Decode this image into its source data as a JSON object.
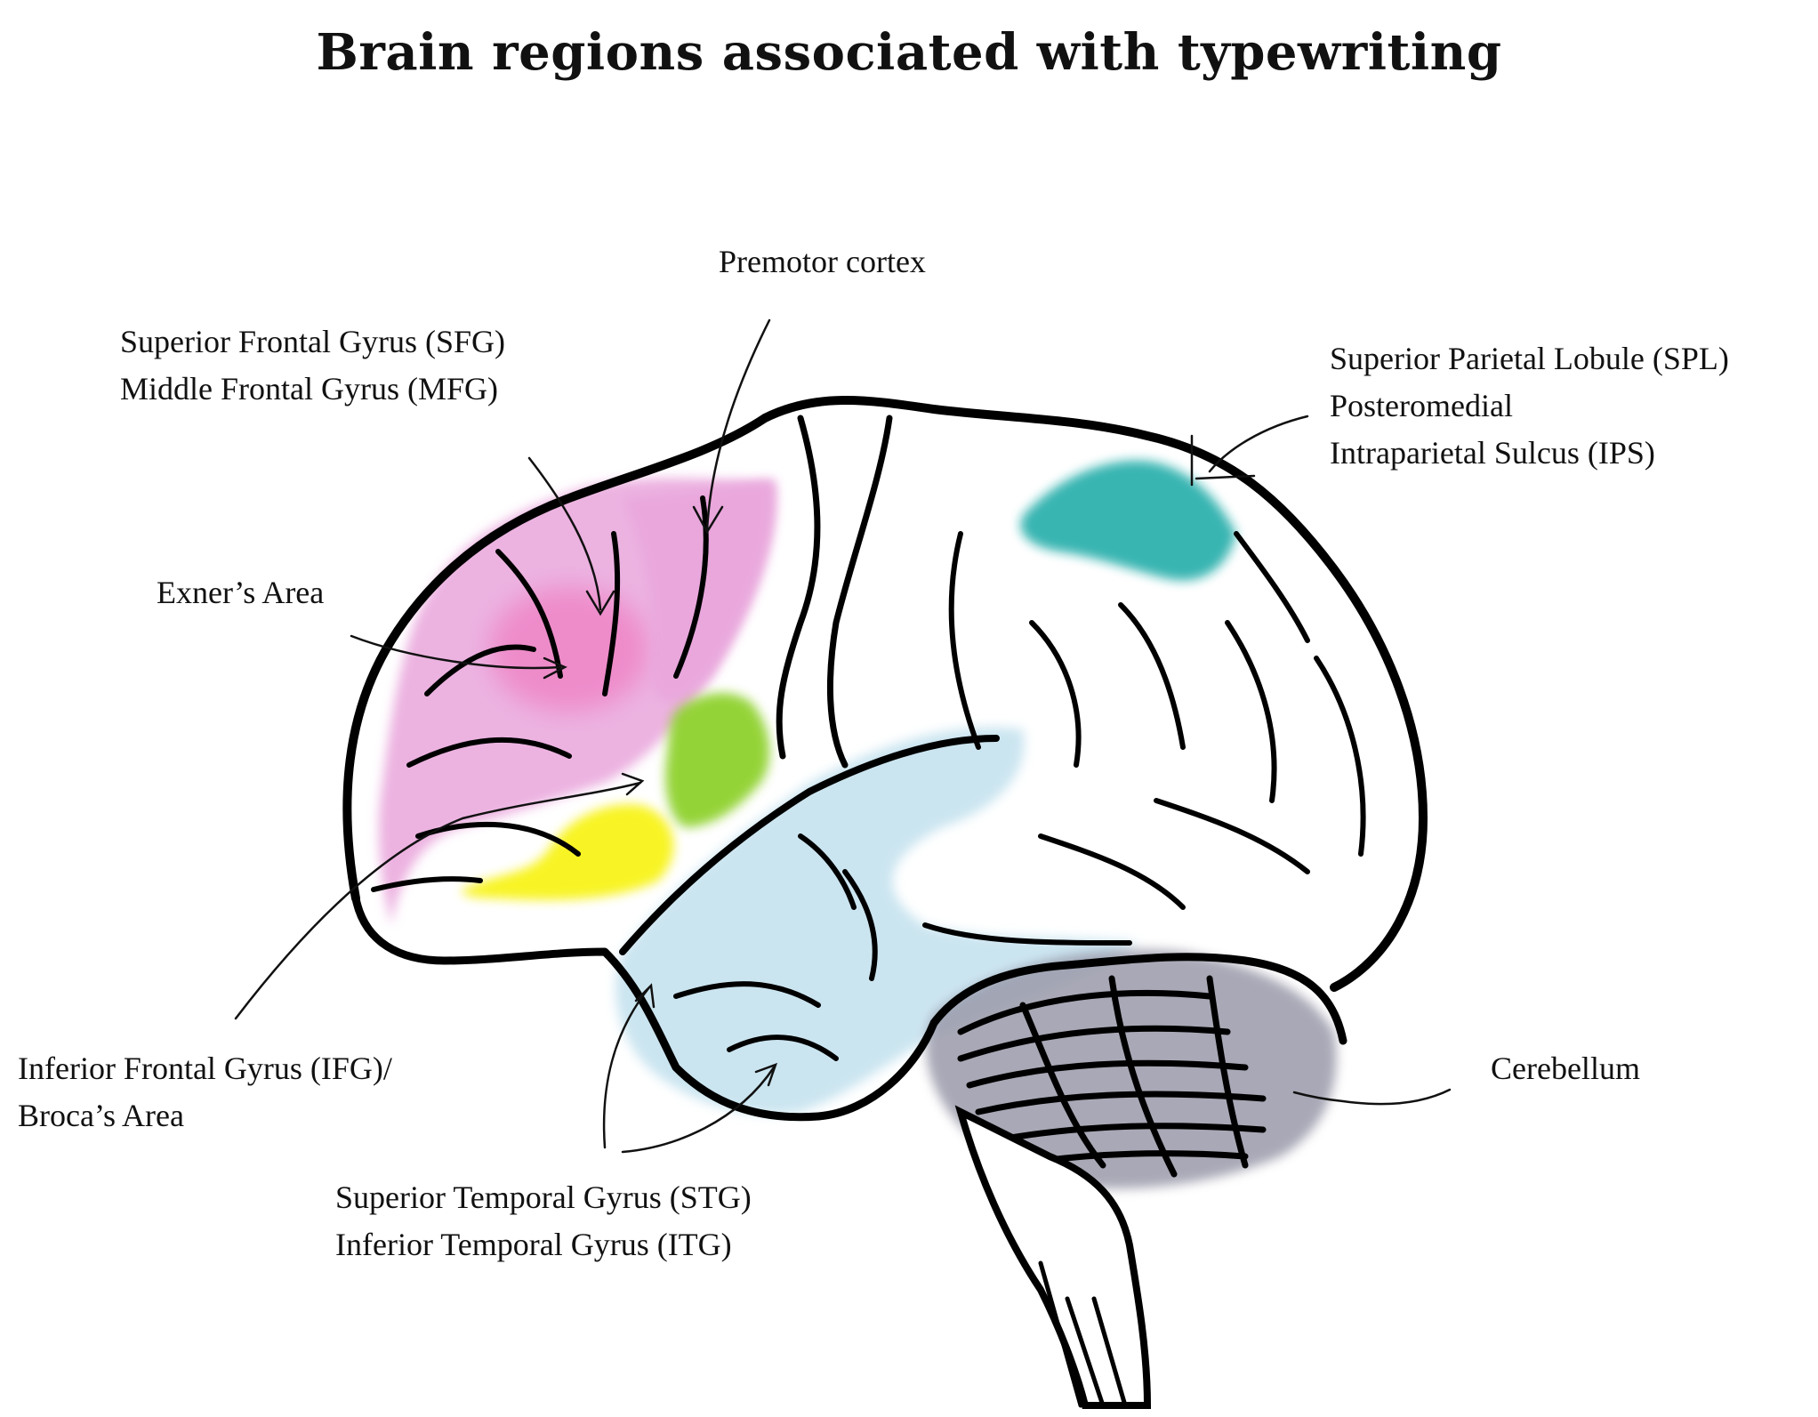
{
  "title": "Brain regions associated with typewriting",
  "regions": {
    "premotor": {
      "lines": [
        "Premotor cortex"
      ],
      "color": "#e9a6dc"
    },
    "frontal": {
      "lines": [
        "Superior Frontal Gyrus (SFG)",
        "Middle Frontal Gyrus (MFG)"
      ],
      "color": "#e9a6dc"
    },
    "exner": {
      "lines": [
        "Exner’s Area"
      ],
      "color": "#ef7fc2"
    },
    "ifg": {
      "lines": [
        "Inferior Frontal Gyrus (IFG)/",
        "Broca’s Area"
      ],
      "color": "#f7f200"
    },
    "temporal": {
      "lines": [
        "Superior Temporal Gyrus (STG)",
        "Inferior Temporal Gyrus (ITG)"
      ],
      "color": "#c2e1ee"
    },
    "parietal": {
      "lines": [
        "Superior Parietal Lobule (SPL)",
        "Posteromedial",
        "Intraparietal Sulcus (IPS)"
      ],
      "color": "#17a8a4"
    },
    "cerebellum": {
      "lines": [
        "Cerebellum"
      ],
      "color": "#9a9aaa"
    },
    "precentral": {
      "color": "#82cc14"
    }
  }
}
